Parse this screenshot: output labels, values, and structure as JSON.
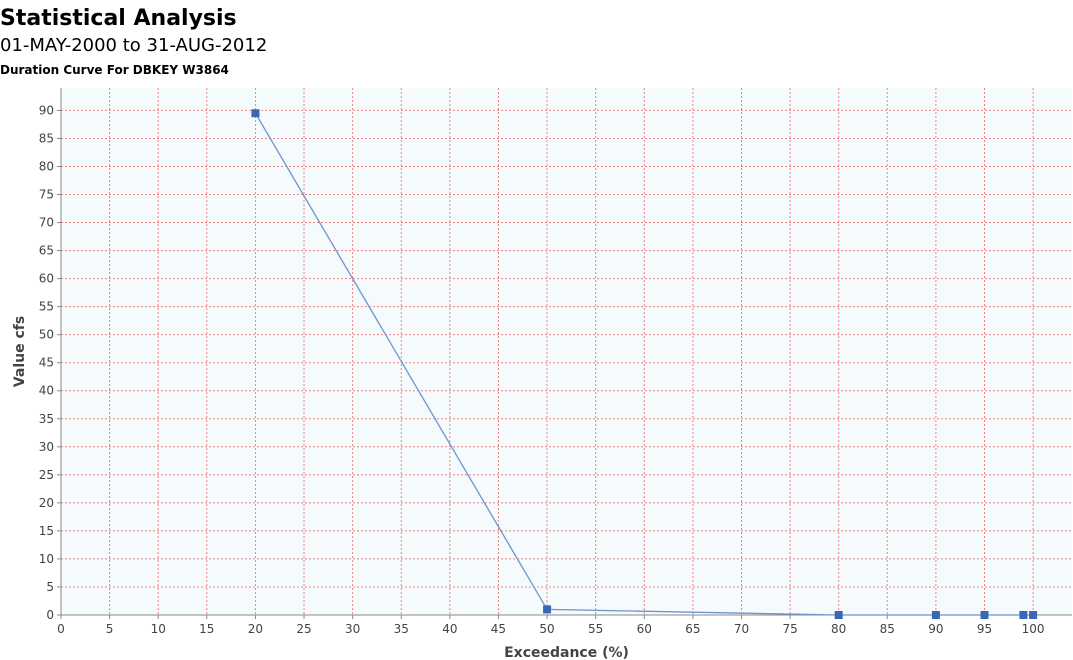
{
  "title": "Statistical Analysis",
  "subtitle": "01-MAY-2000 to 31-AUG-2012",
  "subtitle2": "Duration Curve For DBKEY W3864",
  "chart_data": {
    "type": "line",
    "title": "Statistical Analysis",
    "xlabel": "Exceedance (%)",
    "ylabel": "Value  cfs",
    "xlim": [
      0,
      104
    ],
    "ylim": [
      0,
      94
    ],
    "xticks": [
      0,
      5,
      10,
      15,
      20,
      25,
      30,
      35,
      40,
      45,
      50,
      55,
      60,
      65,
      70,
      75,
      80,
      85,
      90,
      95,
      100
    ],
    "yticks": [
      0,
      5,
      10,
      15,
      20,
      25,
      30,
      35,
      40,
      45,
      50,
      55,
      60,
      65,
      70,
      75,
      80,
      85,
      90
    ],
    "grid": true,
    "colors": {
      "line": "#6f94cd",
      "marker": "#3a66b4",
      "grid": "#f08080",
      "plot_bg": "#f5fbfd",
      "axis": "#888888"
    },
    "series": [
      {
        "x": [
          20,
          50,
          80,
          90,
          95,
          99,
          100
        ],
        "y": [
          89.5,
          1.0,
          0.0,
          0.0,
          0.0,
          0.0,
          0.0
        ]
      }
    ]
  }
}
